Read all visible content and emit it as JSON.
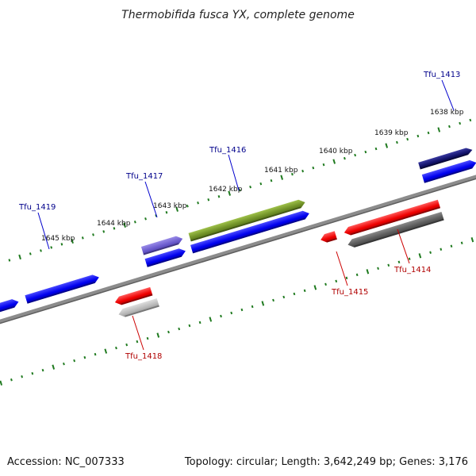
{
  "title": "Thermobifida fusca YX, complete genome",
  "footer": {
    "accession": "Accession: NC_007333",
    "summary": "Topology: circular; Length: 3,642,249 bp; Genes: 3,176"
  },
  "colors": {
    "plus_label": "#00008b",
    "minus_label": "#b00000",
    "tick": "#1f7a1f",
    "backbone": "#888888"
  },
  "kbp_labels": [
    "1638 kbp",
    "1639 kbp",
    "1640 kbp",
    "1641 kbp",
    "1642 kbp",
    "1643 kbp",
    "1644 kbp",
    "1645 kbp"
  ],
  "gene_labels": {
    "plus": [
      "Tfu_1413",
      "Tfu_1416",
      "Tfu_1417",
      "Tfu_1419"
    ],
    "minus": [
      "Tfu_1414",
      "Tfu_1415",
      "Tfu_1418"
    ]
  }
}
